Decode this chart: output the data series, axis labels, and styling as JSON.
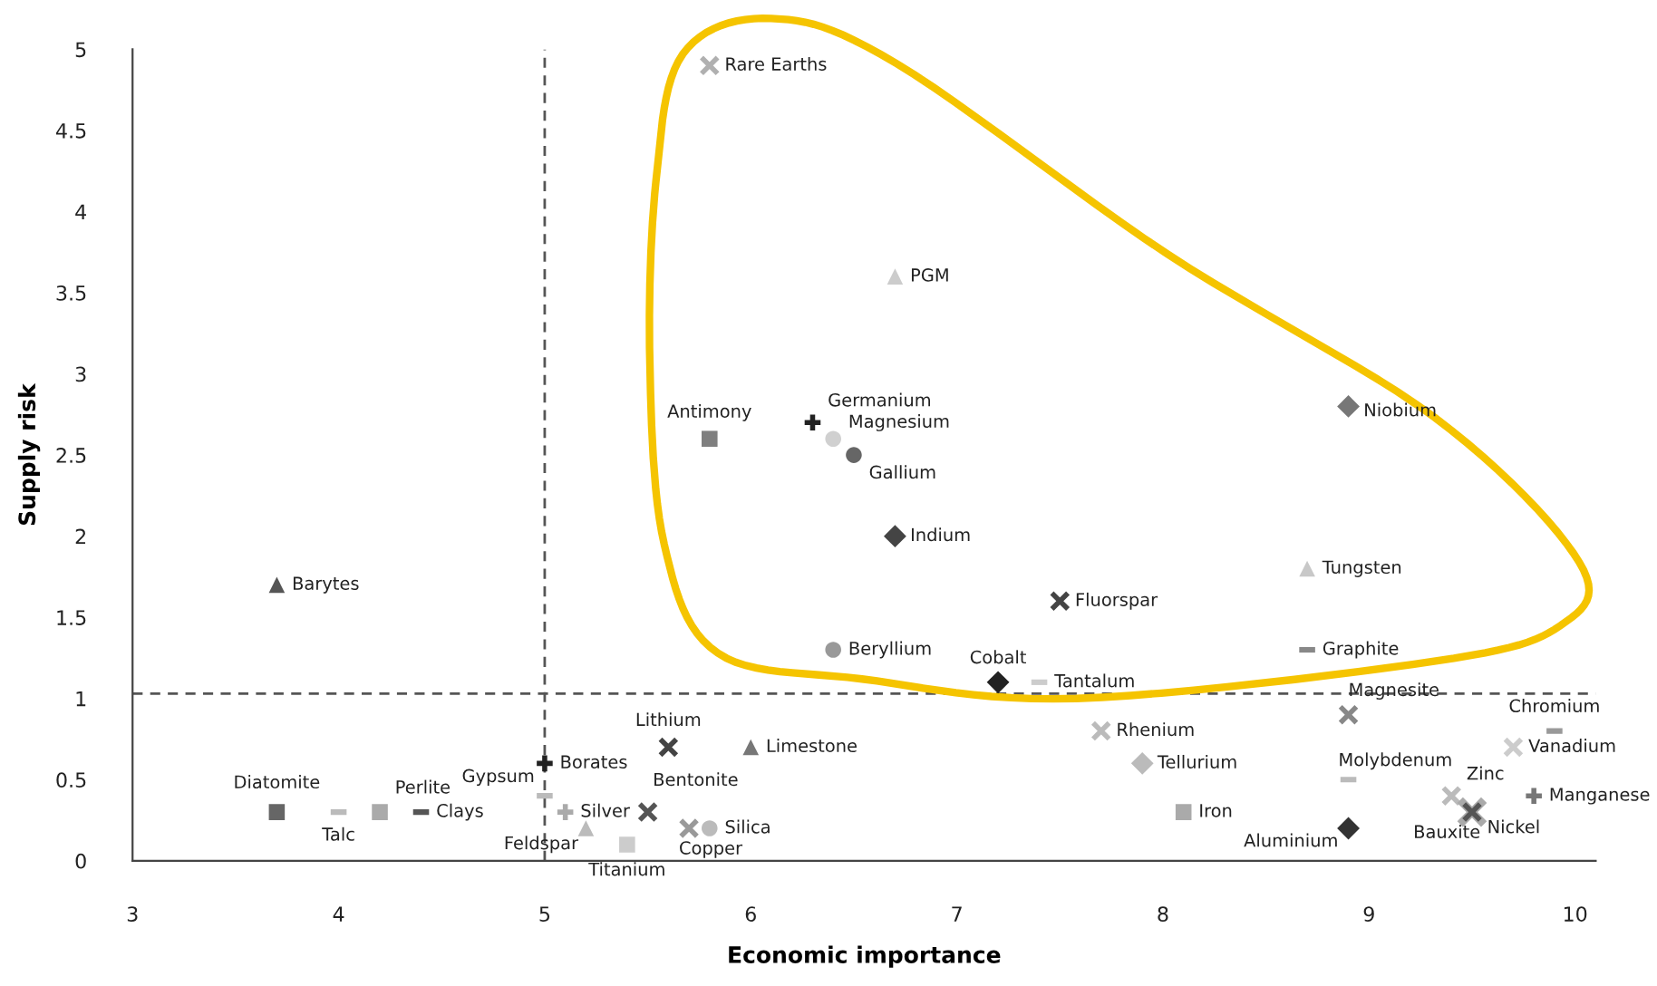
{
  "chart_data": {
    "type": "scatter",
    "xlabel": "Economic importance",
    "ylabel": "Supply risk",
    "xlim": [
      3,
      10.1
    ],
    "ylim": [
      0,
      5
    ],
    "xticks": [
      3,
      4,
      5,
      6,
      7,
      8,
      9,
      10
    ],
    "yticks": [
      0,
      0.5,
      1,
      1.5,
      2,
      2.5,
      3,
      3.5,
      4,
      4.5,
      5
    ],
    "grid": false,
    "legend": false,
    "ref_lines": [
      {
        "axis": "x",
        "value": 5,
        "line_style": "dashed",
        "color": "#555555"
      },
      {
        "axis": "y",
        "value": 1.03,
        "line_style": "dashed",
        "color": "#555555"
      }
    ],
    "series": [
      {
        "name": "Rare Earths",
        "x": [
          5.8
        ],
        "values": [
          4.9
        ],
        "color": "#b0b0b0",
        "marker": "cross"
      },
      {
        "name": "PGM",
        "x": [
          6.7
        ],
        "values": [
          3.6
        ],
        "color": "#cccccc",
        "marker": "triangle"
      },
      {
        "name": "Antimony",
        "x": [
          5.8
        ],
        "values": [
          2.6
        ],
        "color": "#7f7f7f",
        "marker": "square"
      },
      {
        "name": "Germanium",
        "x": [
          6.3
        ],
        "values": [
          2.7
        ],
        "color": "#222222",
        "marker": "plus"
      },
      {
        "name": "Magnesium",
        "x": [
          6.4
        ],
        "values": [
          2.6
        ],
        "color": "#d0d0d0",
        "marker": "circle"
      },
      {
        "name": "Gallium",
        "x": [
          6.5
        ],
        "values": [
          2.5
        ],
        "color": "#666666",
        "marker": "circle"
      },
      {
        "name": "Indium",
        "x": [
          6.7
        ],
        "values": [
          2.0
        ],
        "color": "#444444",
        "marker": "diamond"
      },
      {
        "name": "Niobium",
        "x": [
          8.9
        ],
        "values": [
          2.8
        ],
        "color": "#777777",
        "marker": "diamond"
      },
      {
        "name": "Tungsten",
        "x": [
          8.7
        ],
        "values": [
          1.8
        ],
        "color": "#c8c8c8",
        "marker": "triangle"
      },
      {
        "name": "Fluorspar",
        "x": [
          7.5
        ],
        "values": [
          1.6
        ],
        "color": "#444444",
        "marker": "cross"
      },
      {
        "name": "Beryllium",
        "x": [
          6.4
        ],
        "values": [
          1.3
        ],
        "color": "#999999",
        "marker": "circle"
      },
      {
        "name": "Graphite",
        "x": [
          8.7
        ],
        "values": [
          1.3
        ],
        "color": "#888888"
      },
      {
        "name": "Cobalt",
        "x": [
          7.2
        ],
        "values": [
          1.1
        ],
        "color": "#222222",
        "marker": "diamond"
      },
      {
        "name": "Tantalum",
        "x": [
          7.4
        ],
        "values": [
          1.1
        ],
        "color": "#cccccc"
      },
      {
        "name": "Barytes",
        "x": [
          3.7
        ],
        "values": [
          1.7
        ],
        "color": "#555555",
        "marker": "triangle"
      },
      {
        "name": "Lithium",
        "x": [
          5.6
        ],
        "values": [
          0.7
        ],
        "color": "#444444",
        "marker": "cross"
      },
      {
        "name": "Limestone",
        "x": [
          6.0
        ],
        "values": [
          0.7
        ],
        "color": "#777777",
        "marker": "triangle"
      },
      {
        "name": "Borates",
        "x": [
          5.0
        ],
        "values": [
          0.6
        ],
        "color": "#222222",
        "marker": "plus"
      },
      {
        "name": "Gypsum",
        "x": [
          5.0
        ],
        "values": [
          0.4
        ],
        "color": "#bbbbbb"
      },
      {
        "name": "Diatomite",
        "x": [
          3.7
        ],
        "values": [
          0.3
        ],
        "color": "#666666",
        "marker": "square"
      },
      {
        "name": "Talc",
        "x": [
          4.0
        ],
        "values": [
          0.3
        ],
        "color": "#bbbbbb"
      },
      {
        "name": "Perlite",
        "x": [
          4.2
        ],
        "values": [
          0.3
        ],
        "color": "#aaaaaa",
        "marker": "square"
      },
      {
        "name": "Clays",
        "x": [
          4.4
        ],
        "values": [
          0.3
        ],
        "color": "#555555"
      },
      {
        "name": "Silver",
        "x": [
          5.1
        ],
        "values": [
          0.3
        ],
        "color": "#aaaaaa",
        "marker": "plus"
      },
      {
        "name": "Bentonite",
        "x": [
          5.5
        ],
        "values": [
          0.3
        ],
        "color": "#555555",
        "marker": "cross"
      },
      {
        "name": "Feldspar",
        "x": [
          5.2
        ],
        "values": [
          0.2
        ],
        "color": "#bbbbbb",
        "marker": "triangle"
      },
      {
        "name": "Titanium",
        "x": [
          5.4
        ],
        "values": [
          0.1
        ],
        "color": "#cccccc",
        "marker": "square"
      },
      {
        "name": "Copper",
        "x": [
          5.7
        ],
        "values": [
          0.2
        ],
        "color": "#999999",
        "marker": "cross"
      },
      {
        "name": "Silica",
        "x": [
          5.8
        ],
        "values": [
          0.2
        ],
        "color": "#bbbbbb",
        "marker": "circle"
      },
      {
        "name": "Rhenium",
        "x": [
          7.7
        ],
        "values": [
          0.8
        ],
        "color": "#bbbbbb",
        "marker": "cross"
      },
      {
        "name": "Tellurium",
        "x": [
          7.9
        ],
        "values": [
          0.6
        ],
        "color": "#bbbbbb",
        "marker": "diamond"
      },
      {
        "name": "Iron",
        "x": [
          8.1
        ],
        "values": [
          0.3
        ],
        "color": "#aaaaaa",
        "marker": "square"
      },
      {
        "name": "Aluminium",
        "x": [
          8.9
        ],
        "values": [
          0.2
        ],
        "color": "#333333",
        "marker": "diamond"
      },
      {
        "name": "Magnesite",
        "x": [
          8.9
        ],
        "values": [
          0.9
        ],
        "color": "#888888",
        "marker": "cross"
      },
      {
        "name": "Molybdenum",
        "x": [
          8.9
        ],
        "values": [
          0.5
        ],
        "color": "#bbbbbb"
      },
      {
        "name": "Zinc",
        "x": [
          9.4
        ],
        "values": [
          0.4
        ],
        "color": "#bbbbbb",
        "marker": "cross"
      },
      {
        "name": "Bauxite",
        "x": [
          9.5
        ],
        "values": [
          0.3
        ],
        "color": "#aaaaaa",
        "marker": "cross"
      },
      {
        "name": "Nickel",
        "x": [
          9.5
        ],
        "values": [
          0.3
        ],
        "color": "#555555",
        "marker": "cross"
      },
      {
        "name": "Chromium",
        "x": [
          9.9
        ],
        "values": [
          0.8
        ],
        "color": "#999999"
      },
      {
        "name": "Vanadium",
        "x": [
          9.7
        ],
        "values": [
          0.7
        ],
        "color": "#cccccc",
        "marker": "cross"
      },
      {
        "name": "Manganese",
        "x": [
          9.8
        ],
        "values": [
          0.4
        ],
        "color": "#777777",
        "marker": "plus"
      }
    ]
  }
}
